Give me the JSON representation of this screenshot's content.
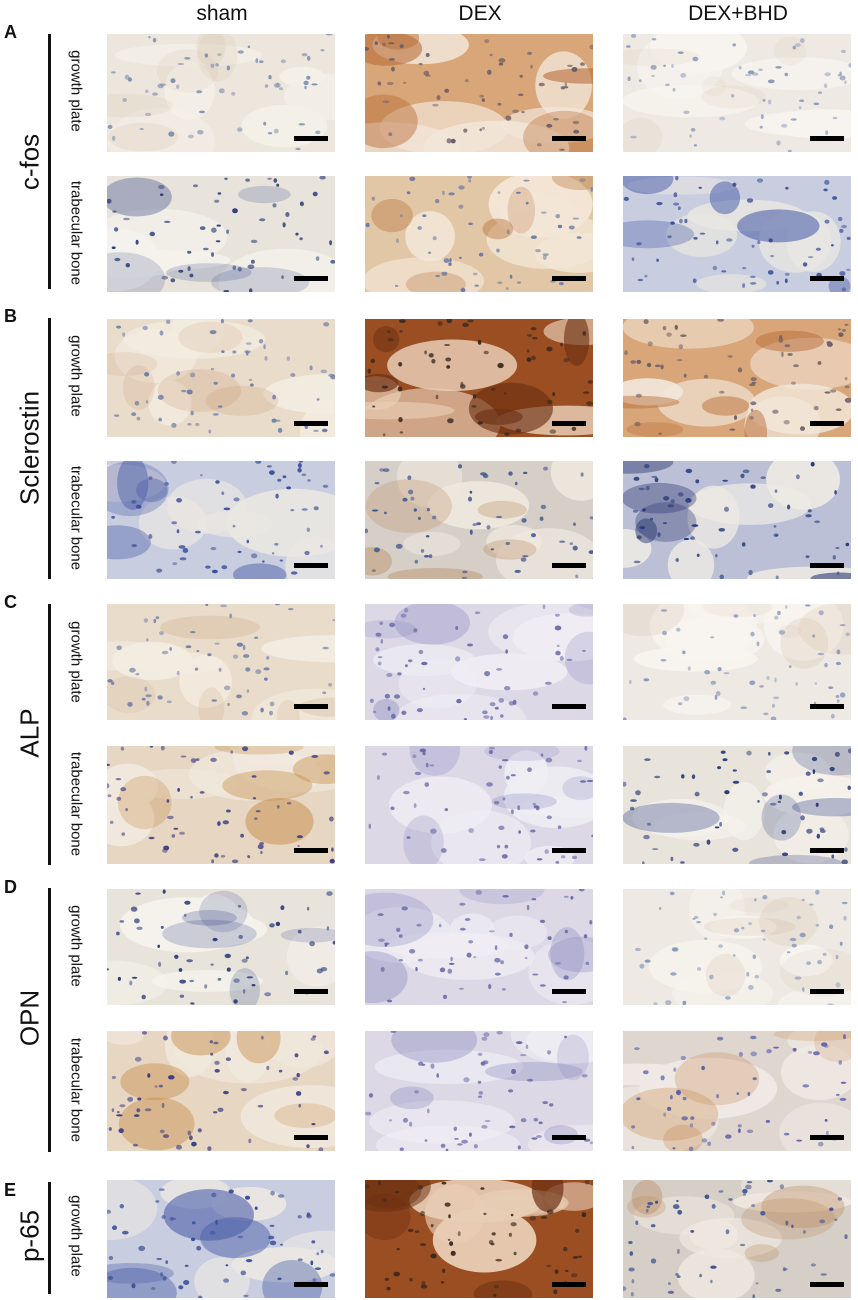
{
  "columns": [
    "sham",
    "DEX",
    "DEX+BHD"
  ],
  "row_labels": {
    "growth_plate": "growth plate",
    "trabecular_bone": "trabecular bone"
  },
  "panels": [
    {
      "letter": "A",
      "marker": "c-fos",
      "rows": [
        {
          "label_key": "growth_plate",
          "stains": [
            "light",
            "brown-strong",
            "light-faint"
          ]
        },
        {
          "label_key": "trabecular_bone",
          "stains": [
            "light-blue",
            "brown",
            "blue-marrow"
          ]
        }
      ]
    },
    {
      "letter": "B",
      "marker": "Sclerostin",
      "rows": [
        {
          "label_key": "growth_plate",
          "stains": [
            "light-tan",
            "brown-dark",
            "brown-strong"
          ]
        },
        {
          "label_key": "trabecular_bone",
          "stains": [
            "blue-marrow",
            "blue-tan",
            "blue-dark"
          ]
        }
      ]
    },
    {
      "letter": "C",
      "marker": "ALP",
      "rows": [
        {
          "label_key": "growth_plate",
          "stains": [
            "light-tan",
            "purple-light",
            "light-faint"
          ]
        },
        {
          "label_key": "trabecular_bone",
          "stains": [
            "tan-marrow",
            "purple-light",
            "light-blue"
          ]
        }
      ]
    },
    {
      "letter": "D",
      "marker": "OPN",
      "rows": [
        {
          "label_key": "growth_plate",
          "stains": [
            "light-blue",
            "purple-light",
            "light-faint"
          ]
        },
        {
          "label_key": "trabecular_bone",
          "stains": [
            "tan-marrow",
            "purple-light",
            "purple-tan"
          ]
        }
      ]
    },
    {
      "letter": "E",
      "marker": "p-65",
      "rows": [
        {
          "label_key": "growth_plate",
          "stains": [
            "blue-marrow",
            "brown-dark",
            "blue-tan"
          ]
        }
      ]
    }
  ],
  "colors": {
    "background": "#ffffff",
    "text": "#111111",
    "scalebar": "#000000"
  }
}
